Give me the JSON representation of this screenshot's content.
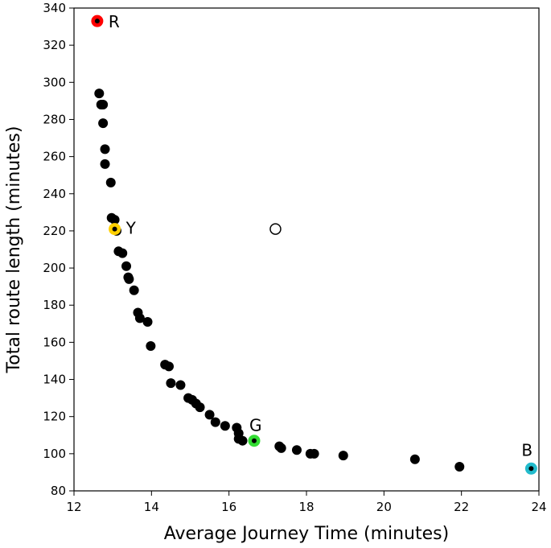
{
  "chart_data": {
    "type": "scatter",
    "xlabel": "Average Journey Time (minutes)",
    "ylabel": "Total route length (minutes)",
    "xlim": [
      12,
      24
    ],
    "ylim": [
      80,
      340
    ],
    "xticks": [
      12,
      14,
      16,
      18,
      20,
      22,
      24
    ],
    "yticks": [
      80,
      100,
      120,
      140,
      160,
      180,
      200,
      220,
      240,
      260,
      280,
      300,
      320,
      340
    ],
    "grid": false,
    "colors": {
      "point": "#000000",
      "R": "#ff0000",
      "Y": "#ffd000",
      "G": "#33dd33",
      "B": "#22bbcc"
    },
    "points": [
      [
        12.65,
        294
      ],
      [
        12.7,
        288
      ],
      [
        12.75,
        288
      ],
      [
        12.75,
        278
      ],
      [
        12.8,
        264
      ],
      [
        12.8,
        256
      ],
      [
        12.95,
        246
      ],
      [
        12.97,
        227
      ],
      [
        13.05,
        226
      ],
      [
        13.1,
        220
      ],
      [
        13.15,
        209
      ],
      [
        13.25,
        208
      ],
      [
        13.35,
        201
      ],
      [
        13.4,
        195
      ],
      [
        13.42,
        194
      ],
      [
        13.55,
        188
      ],
      [
        13.65,
        176
      ],
      [
        13.7,
        173
      ],
      [
        13.9,
        171
      ],
      [
        13.98,
        158
      ],
      [
        14.35,
        148
      ],
      [
        14.45,
        147
      ],
      [
        14.5,
        138
      ],
      [
        14.75,
        137
      ],
      [
        14.95,
        130
      ],
      [
        15.05,
        129
      ],
      [
        15.15,
        127
      ],
      [
        15.25,
        125
      ],
      [
        15.5,
        121
      ],
      [
        15.65,
        117
      ],
      [
        15.9,
        115
      ],
      [
        16.2,
        114
      ],
      [
        16.25,
        111
      ],
      [
        16.25,
        108
      ],
      [
        16.35,
        107
      ],
      [
        17.3,
        104
      ],
      [
        17.35,
        103
      ],
      [
        17.75,
        102
      ],
      [
        18.1,
        100
      ],
      [
        18.2,
        100
      ],
      [
        18.95,
        99
      ],
      [
        20.8,
        97
      ],
      [
        21.95,
        93
      ]
    ],
    "open_points": [
      [
        17.2,
        221
      ]
    ],
    "highlighted": [
      {
        "label": "R",
        "x": 12.6,
        "y": 333,
        "color": "#ff0000"
      },
      {
        "label": "Y",
        "x": 13.05,
        "y": 221,
        "color": "#ffd000"
      },
      {
        "label": "G",
        "x": 16.65,
        "y": 107,
        "color": "#33dd33"
      },
      {
        "label": "B",
        "x": 23.8,
        "y": 92,
        "color": "#22bbcc"
      }
    ]
  }
}
